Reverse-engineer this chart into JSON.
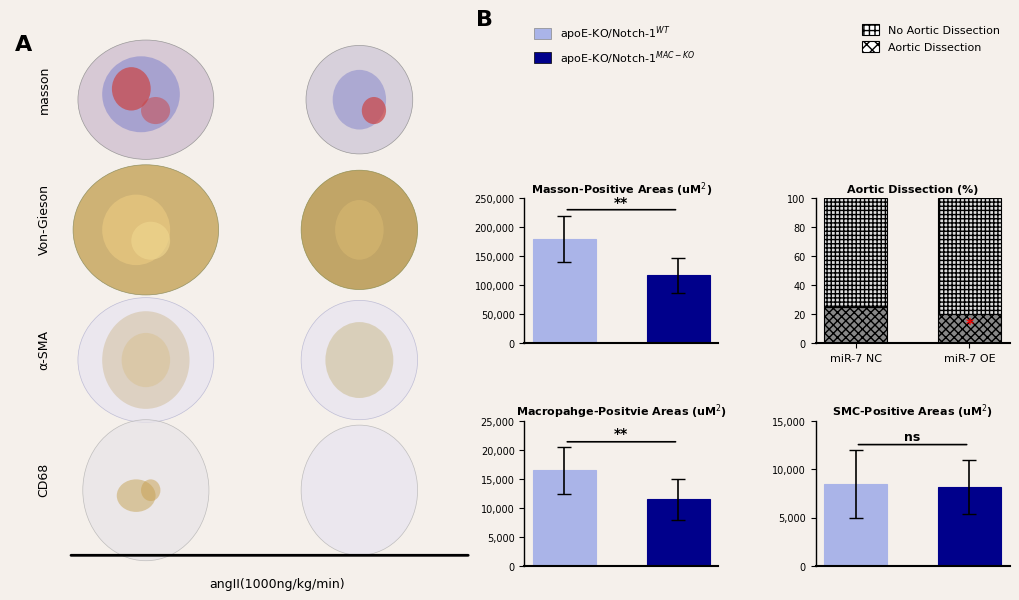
{
  "light_blue": "#aab4e8",
  "dark_blue": "#00008B",
  "legend_labels": [
    "apoE-KO/Notch-1$^{WT}$",
    "apoE-KO/Notch-1$^{MAC-KO}$"
  ],
  "legend_labels_right": [
    "No Aortic Dissection",
    "Aortic Dissection"
  ],
  "masson_title": "Masson-Positive Areas (uM$^{2}$)",
  "masson_wt_mean": 180000,
  "masson_wt_err": 40000,
  "masson_ko_mean": 117000,
  "masson_ko_err": 30000,
  "masson_ylim": [
    0,
    250000
  ],
  "masson_yticks": [
    0,
    50000,
    100000,
    150000,
    200000,
    250000
  ],
  "masson_sig": "**",
  "macro_title": "Macropahge-Positvie Areas (uM$^{2}$)",
  "macro_wt_mean": 16500,
  "macro_wt_err": 4000,
  "macro_ko_mean": 11500,
  "macro_ko_err": 3500,
  "macro_ylim": [
    0,
    25000
  ],
  "macro_yticks": [
    0,
    5000,
    10000,
    15000,
    20000,
    25000
  ],
  "macro_sig": "**",
  "smc_title": "SMC-Positive Areas (uM$^{2}$)",
  "smc_wt_mean": 8500,
  "smc_wt_err": 3500,
  "smc_ko_mean": 8200,
  "smc_ko_err": 2800,
  "smc_ylim": [
    0,
    15000
  ],
  "smc_yticks": [
    0,
    5000,
    10000,
    15000
  ],
  "smc_sig": "ns",
  "aortic_title": "Aortic Dissection (%)",
  "aortic_nc_no": 75,
  "aortic_nc_yes": 25,
  "aortic_oe_no": 80,
  "aortic_oe_yes": 20,
  "aortic_xlabels": [
    "miR-7 NC",
    "miR-7 OE"
  ],
  "bg_color": "#f5f0eb",
  "row_labels": [
    "masson",
    "Von-Gieson",
    "α-SMA",
    "CD68"
  ],
  "xlabel_a": "angII(1000ng/kg/min)"
}
